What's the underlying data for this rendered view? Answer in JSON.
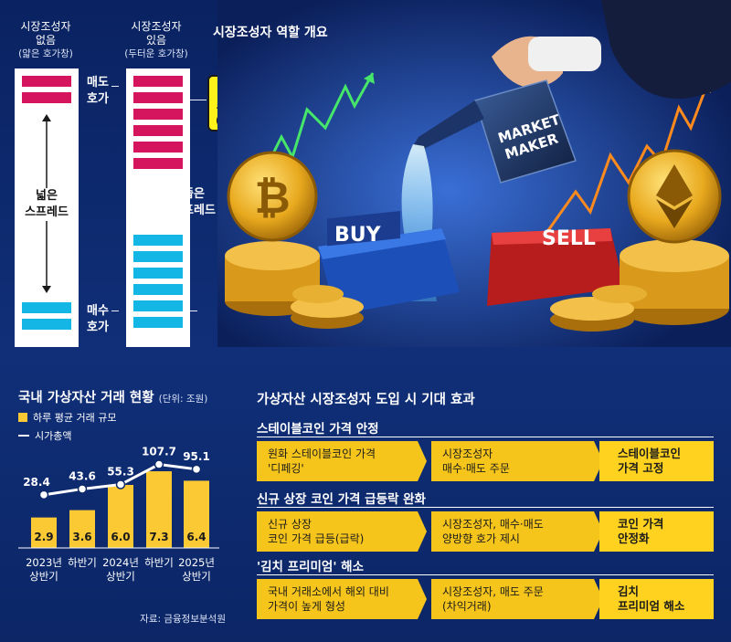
{
  "orderbook": {
    "no_mm_header": [
      "시장조성자",
      "없음"
    ],
    "no_mm_sub": "(얇은 호가창)",
    "mm_header": [
      "시장조성자",
      "있음"
    ],
    "mm_sub": "(두터운 호가창)",
    "ask_label": [
      "매도",
      "호가"
    ],
    "bid_label": [
      "매수",
      "호가"
    ],
    "wide_spread": [
      "넓은",
      "스프레드"
    ],
    "narrow_spread": [
      "좁은",
      "스프레드"
    ],
    "mm_box": [
      "시장",
      "조성자",
      "(MM)"
    ],
    "colors": {
      "ask": "#d6155f",
      "bid": "#14b6e6"
    }
  },
  "illustration": {
    "title": "시장조성자 역할 개요",
    "can_text": [
      "MARKET",
      "MAKER"
    ],
    "buy_label": "BUY",
    "sell_label": "SELL",
    "icons": [
      "bitcoin-coin-icon",
      "ethereum-coin-icon",
      "watering-can-icon",
      "hand-icon"
    ]
  },
  "chart_data": {
    "type": "bar",
    "title": "국내 가상자산 거래 현황",
    "unit": "(단위: 조원)",
    "categories": [
      [
        "2023년",
        "상반기"
      ],
      [
        "하반기",
        ""
      ],
      [
        "2024년",
        "상반기"
      ],
      [
        "하반기",
        ""
      ],
      [
        "2025년",
        "상반기"
      ]
    ],
    "series": [
      {
        "name": "하루 평균 거래 규모",
        "type": "bar",
        "values": [
          2.9,
          3.6,
          6.0,
          7.3,
          6.4
        ],
        "color": "#fbc934"
      },
      {
        "name": "시가총액",
        "type": "line",
        "values": [
          28.4,
          43.6,
          55.3,
          107.7,
          95.1
        ],
        "color": "#ffffff"
      }
    ],
    "bar_labels": [
      "2.9",
      "3.6",
      "6.0",
      "7.3",
      "6.4"
    ],
    "line_labels": [
      "28.4",
      "43.6",
      "55.3",
      "107.7",
      "95.1"
    ],
    "source": "자료: 금융정보분석원"
  },
  "effects": {
    "title": "가상자산 시장조성자 도입 시 기대 효과",
    "rows": [
      {
        "title": "스테이블코인 가격 안정",
        "problem": [
          "원화 스테이블코인 가격",
          "'디페깅'"
        ],
        "action": [
          "시장조성자",
          "매수·매도 주문"
        ],
        "result": [
          "스테이블코인",
          "가격 고정"
        ]
      },
      {
        "title": "신규 상장 코인 가격 급등락 완화",
        "problem": [
          "신규 상장",
          "코인 가격 급등(급락)"
        ],
        "action": [
          "시장조성자, 매수·매도",
          "양방향 호가 제시"
        ],
        "result": [
          "코인 가격",
          "안정화"
        ]
      },
      {
        "title": "'김치 프리미엄' 해소",
        "problem": [
          "국내 거래소에서 해외 대비",
          "가격이 높게 형성"
        ],
        "action": [
          "시장조성자, 매도 주문",
          "(차익거래)"
        ],
        "result": [
          "김치",
          "프리미엄 해소"
        ]
      }
    ]
  }
}
